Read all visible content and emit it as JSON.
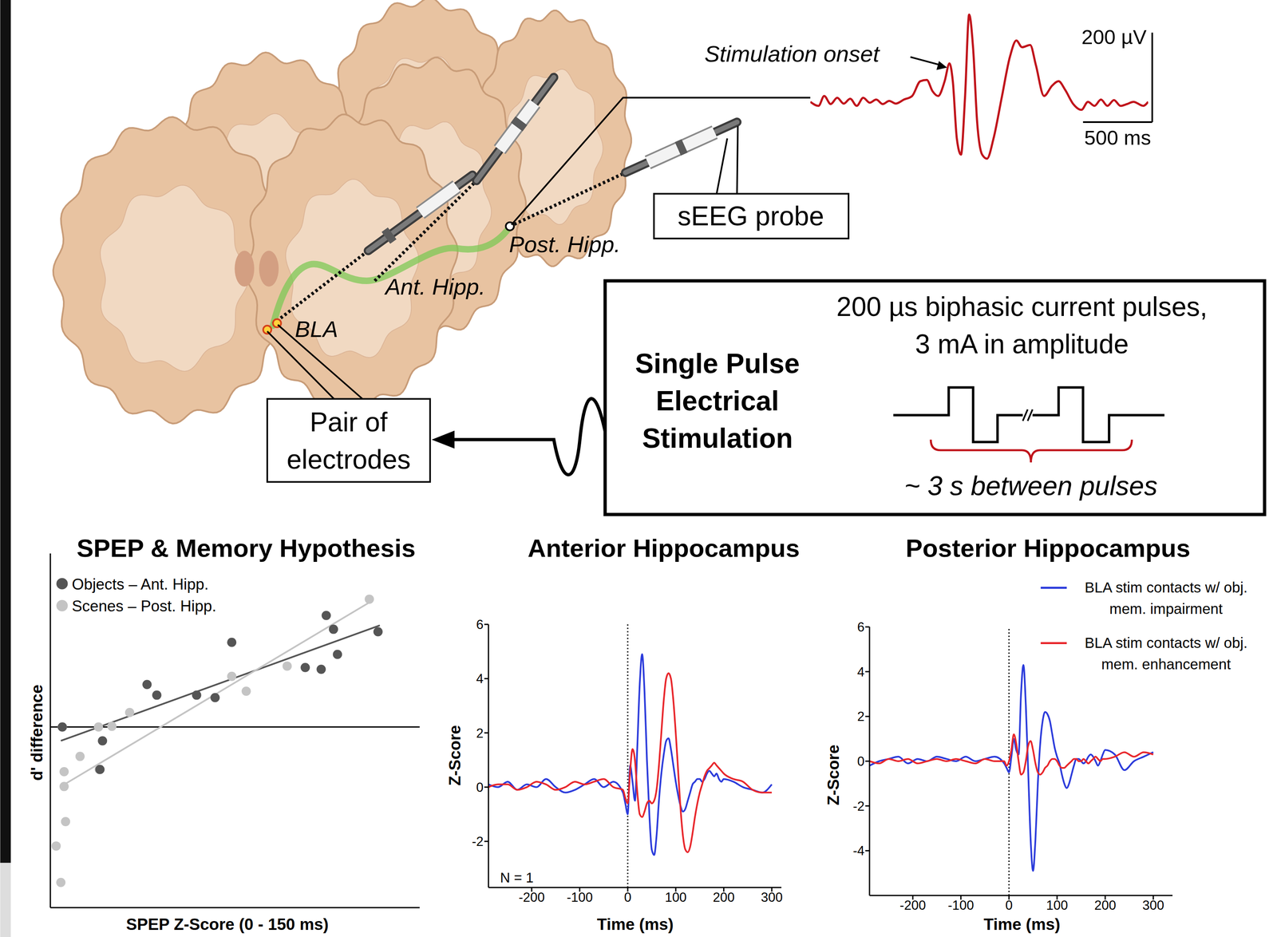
{
  "diagram": {
    "regions": {
      "amygdala": "BLA",
      "anterior": "Ant. Hipp.",
      "posterior": "Post. Hipp."
    },
    "probe_label": "sEEG probe",
    "electrodes_label": [
      "Pair of",
      "electrodes"
    ],
    "stimulation": {
      "title": [
        "Single Pulse",
        "Electrical",
        "Stimulation"
      ],
      "description": [
        "200 µs biphasic current pulses,",
        "3 mA in amplitude"
      ],
      "interval": "~ 3 s between pulses"
    }
  },
  "chart_data": [
    {
      "type": "line",
      "annotation": "Stimulation onset",
      "x": [
        0,
        59,
        100,
        147,
        194,
        241,
        288,
        335,
        382,
        429,
        476,
        523,
        570,
        617,
        676,
        735,
        794,
        841,
        882,
        923,
        970,
        1005,
        1029,
        1058,
        1088,
        1117,
        1147,
        1176,
        1205,
        1241,
        1276,
        1323,
        1382,
        1441,
        1488,
        1529,
        1588,
        1629,
        1688,
        1746,
        1793,
        1840,
        1899,
        1958,
        2005,
        2052,
        2099,
        2146,
        2193,
        2240,
        2287,
        2334,
        2405,
        2440
      ],
      "series": [
        {
          "color": "#c0141b",
          "values": [
            0,
            -9,
            13,
            -5,
            9,
            -4,
            7,
            -9,
            9,
            -2,
            5,
            -5,
            2,
            -4,
            5,
            13,
            46,
            49,
            24,
            13,
            46,
            86,
            46,
            -82,
            -118,
            9,
            195,
            118,
            -46,
            -118,
            -127,
            -82,
            9,
            100,
            137,
            122,
            127,
            82,
            13,
            36,
            46,
            27,
            -5,
            -18,
            0,
            -9,
            5,
            -9,
            4,
            -9,
            -5,
            0,
            -9,
            0
          ]
        }
      ],
      "xlim": [
        0,
        2440
      ],
      "ylim": [
        -140,
        205
      ],
      "tick_labels": false,
      "scale_bar": {
        "x": 500,
        "x_label": "500 ms",
        "y": 200,
        "y_label": "200 µV"
      }
    },
    {
      "type": "scatter",
      "title": "SPEP & Memory Hypothesis",
      "x_label": "SPEP Z-Score (0 - 150 ms)",
      "y_label": "d' difference",
      "xlim": [
        -0.2,
        10
      ],
      "ylim": [
        -5.1,
        4.9
      ],
      "tick_labels": false,
      "legend": "upper left",
      "reference_y": 0,
      "series": [
        {
          "name": "Objects – Ant. Hipp.",
          "color": "#555555",
          "x": [
            0.13,
            1.24,
            1.17,
            2.47,
            2.74,
            3.84,
            4.35,
            4.81,
            6.84,
            7.28,
            7.42,
            7.62,
            7.73,
            8.85
          ],
          "values": [
            0,
            -0.39,
            -1.2,
            1.2,
            0.9,
            0.9,
            0.83,
            2.39,
            1.68,
            1.63,
            3.15,
            2.76,
            2.05,
            2.69
          ],
          "fit": {
            "x": [
              0.09,
              8.9
            ],
            "values": [
              -0.39,
              2.87
            ]
          }
        },
        {
          "name": "Scenes – Post. Hipp.",
          "color": "#c4c4c4",
          "x": [
            0.13,
            0.18,
            0.18,
            0.22,
            -0.04,
            0.09,
            0.62,
            1.13,
            1.15,
            1.5,
            1.99,
            4.81,
            5.21,
            6.34,
            8.61
          ],
          "values": [
            0,
            -1.26,
            -1.68,
            -2.67,
            -3.36,
            -4.39,
            -0.83,
            0,
            -1.2,
            0.02,
            0.41,
            1.43,
            1.01,
            1.72,
            3.61
          ],
          "fit": {
            "x": [
              0.09,
              8.68
            ],
            "values": [
              -1.68,
              3.56
            ]
          }
        }
      ]
    },
    {
      "type": "line",
      "title": "Anterior Hippocampus",
      "x_label": "Time (ms)",
      "y_label": "Z-Score",
      "annotation": "N = 1",
      "onset_x": 0,
      "xlim": [
        -290,
        320
      ],
      "ylim": [
        -3.7,
        6
      ],
      "xticks": [
        -200,
        -100,
        0,
        100,
        200,
        300
      ],
      "yticks": [
        -2,
        0,
        2,
        4,
        6
      ],
      "x": [
        -290,
        -270,
        -250,
        -230,
        -210,
        -190,
        -170,
        -150,
        -130,
        -110,
        -90,
        -70,
        -50,
        -30,
        -10,
        -5,
        0,
        5,
        10,
        15,
        20,
        25,
        30,
        35,
        40,
        45,
        50,
        55,
        60,
        65,
        70,
        75,
        80,
        85,
        90,
        95,
        100,
        105,
        110,
        115,
        120,
        125,
        130,
        135,
        140,
        145,
        150,
        155,
        160,
        165,
        170,
        175,
        180,
        185,
        190,
        195,
        200,
        220,
        240,
        260,
        280,
        300
      ],
      "series": [
        {
          "color": "#2b3bdb",
          "values": [
            0.1,
            0,
            0.2,
            -0.1,
            0.1,
            0,
            0.3,
            0,
            -0.2,
            -0.1,
            0.1,
            0.3,
            0,
            0.2,
            -0.2,
            -0.6,
            -1,
            0.8,
            0.2,
            -0.5,
            1.5,
            3.8,
            4.9,
            3.5,
            1,
            -1,
            -2.3,
            -2.5,
            -1.8,
            -0.5,
            0.5,
            1.2,
            1.7,
            1.8,
            1.4,
            0.8,
            0.2,
            -0.3,
            -0.7,
            -0.9,
            -0.8,
            -0.5,
            -0.2,
            0.1,
            0.2,
            0.3,
            0.3,
            0.2,
            0.3,
            0.5,
            0.6,
            0.5,
            0.4,
            0.5,
            0.3,
            0.2,
            0.3,
            0.2,
            0,
            -0.1,
            -0.2,
            0.1
          ]
        },
        {
          "color": "#e8262b",
          "values": [
            0,
            0.1,
            0.1,
            -0.1,
            0,
            0.2,
            0.1,
            -0.1,
            0,
            0.2,
            0.1,
            0.2,
            0.3,
            0,
            -0.1,
            -0.4,
            -0.6,
            0.6,
            1.4,
            1,
            -0.2,
            -1,
            -1.1,
            -0.9,
            -0.6,
            -0.5,
            -0.6,
            -0.5,
            -0.1,
            0.8,
            2,
            3.2,
            4,
            4.2,
            4,
            3.2,
            2,
            0.6,
            -0.8,
            -1.8,
            -2.3,
            -2.4,
            -2.2,
            -1.7,
            -1.1,
            -0.6,
            -0.2,
            0.1,
            0.4,
            0.6,
            0.7,
            0.8,
            0.9,
            0.8,
            0.7,
            0.6,
            0.5,
            0.3,
            0.2,
            -0.1,
            -0.2,
            -0.2
          ]
        }
      ]
    },
    {
      "type": "line",
      "title": "Posterior Hippocampus",
      "x_label": "Time (ms)",
      "y_label": "Z-Score",
      "onset_x": 0,
      "legend": "upper right",
      "xlim": [
        -290,
        340
      ],
      "ylim": [
        -6,
        6
      ],
      "xticks": [
        -200,
        -100,
        0,
        100,
        200,
        300
      ],
      "yticks": [
        -4,
        -2,
        0,
        2,
        4,
        6
      ],
      "x": [
        -290,
        -270,
        -250,
        -230,
        -210,
        -190,
        -170,
        -150,
        -130,
        -110,
        -90,
        -70,
        -50,
        -30,
        -10,
        -5,
        0,
        5,
        10,
        15,
        20,
        25,
        30,
        35,
        40,
        45,
        50,
        55,
        60,
        65,
        70,
        75,
        80,
        85,
        90,
        95,
        100,
        105,
        110,
        115,
        120,
        125,
        130,
        135,
        140,
        145,
        150,
        155,
        160,
        165,
        170,
        175,
        180,
        185,
        190,
        195,
        200,
        220,
        240,
        260,
        280,
        300
      ],
      "series": [
        {
          "name": "BLA stim contacts w/ obj. mem. impairment",
          "color": "#2b3bdb",
          "values": [
            -0.2,
            0,
            0.1,
            0.2,
            -0.1,
            0.1,
            0,
            0.2,
            0.1,
            0,
            0.2,
            0,
            0.1,
            0.2,
            -0.1,
            -0.3,
            -0.5,
            0.2,
            1,
            0.5,
            0.3,
            3,
            4.3,
            2.5,
            -0.5,
            -3.5,
            -4.9,
            -3.5,
            -1,
            0.8,
            1.8,
            2.2,
            2.1,
            1.8,
            1.2,
            0.6,
            0.2,
            -0.1,
            -0.6,
            -1,
            -1.2,
            -1,
            -0.6,
            -0.2,
            0.1,
            0.1,
            0,
            -0.1,
            0,
            0.2,
            0.3,
            0.2,
            0,
            -0.2,
            0,
            0.3,
            0.5,
            0.3,
            -0.4,
            0,
            0.2,
            0.4
          ]
        },
        {
          "name": "BLA stim contacts w/ obj. mem. enhancement",
          "color": "#e8262b",
          "values": [
            0,
            -0.1,
            0.1,
            0,
            0.1,
            -0.1,
            0,
            0.1,
            0,
            0.1,
            0,
            -0.1,
            0.1,
            0,
            0,
            -0.2,
            0,
            0.5,
            1.2,
            0.8,
            0,
            -0.6,
            -0.5,
            0,
            0.7,
            0.9,
            0.5,
            -0.1,
            -0.5,
            -0.6,
            -0.5,
            -0.3,
            -0.2,
            0,
            0.1,
            0.1,
            0,
            -0.2,
            -0.3,
            -0.3,
            -0.2,
            -0.1,
            0,
            0.1,
            0.1,
            0,
            0,
            0.1,
            0,
            -0.1,
            0,
            0.1,
            0.2,
            0.1,
            0,
            0.1,
            0.1,
            0.2,
            0.4,
            0.2,
            0.4,
            0.3
          ]
        }
      ]
    }
  ]
}
